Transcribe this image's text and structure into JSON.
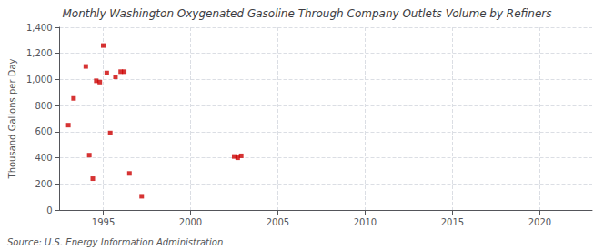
{
  "chart_data": {
    "type": "scatter",
    "title": "Monthly Washington Oxygenated Gasoline Through Company Outlets Volume by Refiners",
    "ylabel": "Thousand Gallons per Day",
    "annotations": [
      "Source: U.S. Energy Information Administration"
    ],
    "x": [
      1993.0,
      1993.3,
      1994.0,
      1994.2,
      1994.4,
      1994.6,
      1994.8,
      1995.0,
      1995.2,
      1995.4,
      1995.7,
      1996.0,
      1996.2,
      1996.5,
      1997.2,
      2002.5,
      2002.7,
      2002.9
    ],
    "values": [
      650,
      855,
      1100,
      420,
      240,
      990,
      980,
      1260,
      1050,
      590,
      1020,
      1060,
      1060,
      280,
      105,
      410,
      400,
      415
    ],
    "color": "#cc0000",
    "marker": "square",
    "xlim": [
      1992.5,
      2023
    ],
    "ylim": [
      0,
      1400
    ],
    "xticks": [
      1995,
      2000,
      2005,
      2010,
      2015,
      2020
    ],
    "yticks": [
      0,
      200,
      400,
      600,
      800,
      {
        "value": 1000,
        "label": "1,000"
      },
      {
        "value": 1200,
        "label": "1,200"
      },
      {
        "value": 1400,
        "label": "1,400"
      }
    ],
    "grid": true
  }
}
